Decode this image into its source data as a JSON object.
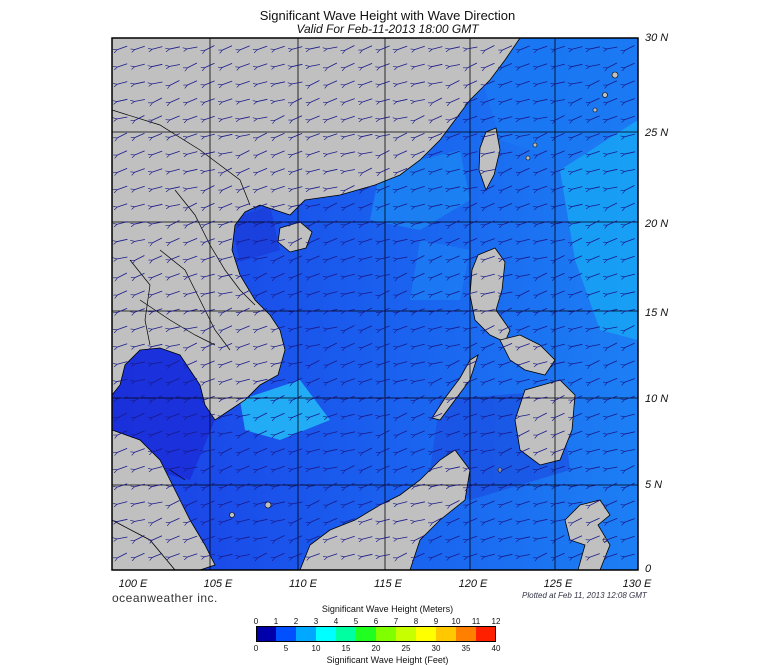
{
  "title": "Significant Wave Height with Wave Direction",
  "subtitle": "Valid For Feb-11-2013 18:00 GMT",
  "brand": "oceanweather inc.",
  "plotted": "Plotted at Feb 11, 2013 12:08 GMT",
  "lat_labels": [
    "30 N",
    "25 N",
    "20 N",
    "15 N",
    "10 N",
    "5 N",
    "0"
  ],
  "lon_labels": [
    "100 E",
    "105 E",
    "110 E",
    "115 E",
    "120 E",
    "125 E",
    "130 E"
  ],
  "colorbar": {
    "title_meters": "Significant Wave Height (Meters)",
    "title_feet": "Significant Wave Height (Feet)",
    "meters_ticks": [
      "0",
      "1",
      "2",
      "3",
      "4",
      "5",
      "6",
      "7",
      "8",
      "9",
      "10",
      "11",
      "12"
    ],
    "feet_ticks": [
      "0",
      "5",
      "10",
      "15",
      "20",
      "25",
      "30",
      "35",
      "40"
    ],
    "colors": [
      "#0000aa",
      "#0050ff",
      "#00a8ff",
      "#00ffff",
      "#00ffa0",
      "#20ff20",
      "#80ff00",
      "#c8ff00",
      "#ffff00",
      "#ffc800",
      "#ff8000",
      "#ff2000"
    ]
  },
  "colors": {
    "land": "#c0c0c0",
    "sea_low": "#1c3ee8",
    "sea_mid": "#1a6cf2",
    "sea_high": "#14a6f6",
    "arrow": "#1a1a8a"
  },
  "map_data": {
    "lon_range": [
      99,
      130
    ],
    "lat_range": [
      0,
      30
    ],
    "wave_direction": "toward southwest"
  }
}
